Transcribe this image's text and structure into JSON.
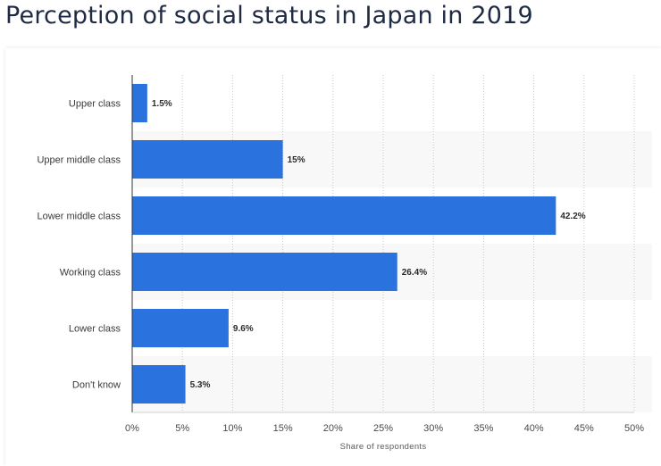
{
  "title": "Perception of social status in Japan in 2019",
  "colors": {
    "bar": "#2a73de",
    "band": "#f8f8f8",
    "grid": "#c8c8c8",
    "axis": "#333333"
  },
  "chart_data": {
    "type": "bar",
    "orientation": "horizontal",
    "title": "Perception of social status in Japan in 2019",
    "categories": [
      "Upper class",
      "Upper middle class",
      "Lower middle class",
      "Working class",
      "Lower class",
      "Don't know"
    ],
    "values": [
      1.5,
      15,
      42.2,
      26.4,
      9.6,
      5.3
    ],
    "value_labels": [
      "1.5%",
      "15%",
      "42.2%",
      "26.4%",
      "9.6%",
      "5.3%"
    ],
    "xlabel": "Share of respondents",
    "ylabel": "",
    "xlim": [
      0,
      50
    ],
    "ticks": [
      0,
      5,
      10,
      15,
      20,
      25,
      30,
      35,
      40,
      45,
      50
    ],
    "tick_labels": [
      "0%",
      "5%",
      "10%",
      "15%",
      "20%",
      "25%",
      "30%",
      "35%",
      "40%",
      "45%",
      "50%"
    ],
    "grid": true
  }
}
